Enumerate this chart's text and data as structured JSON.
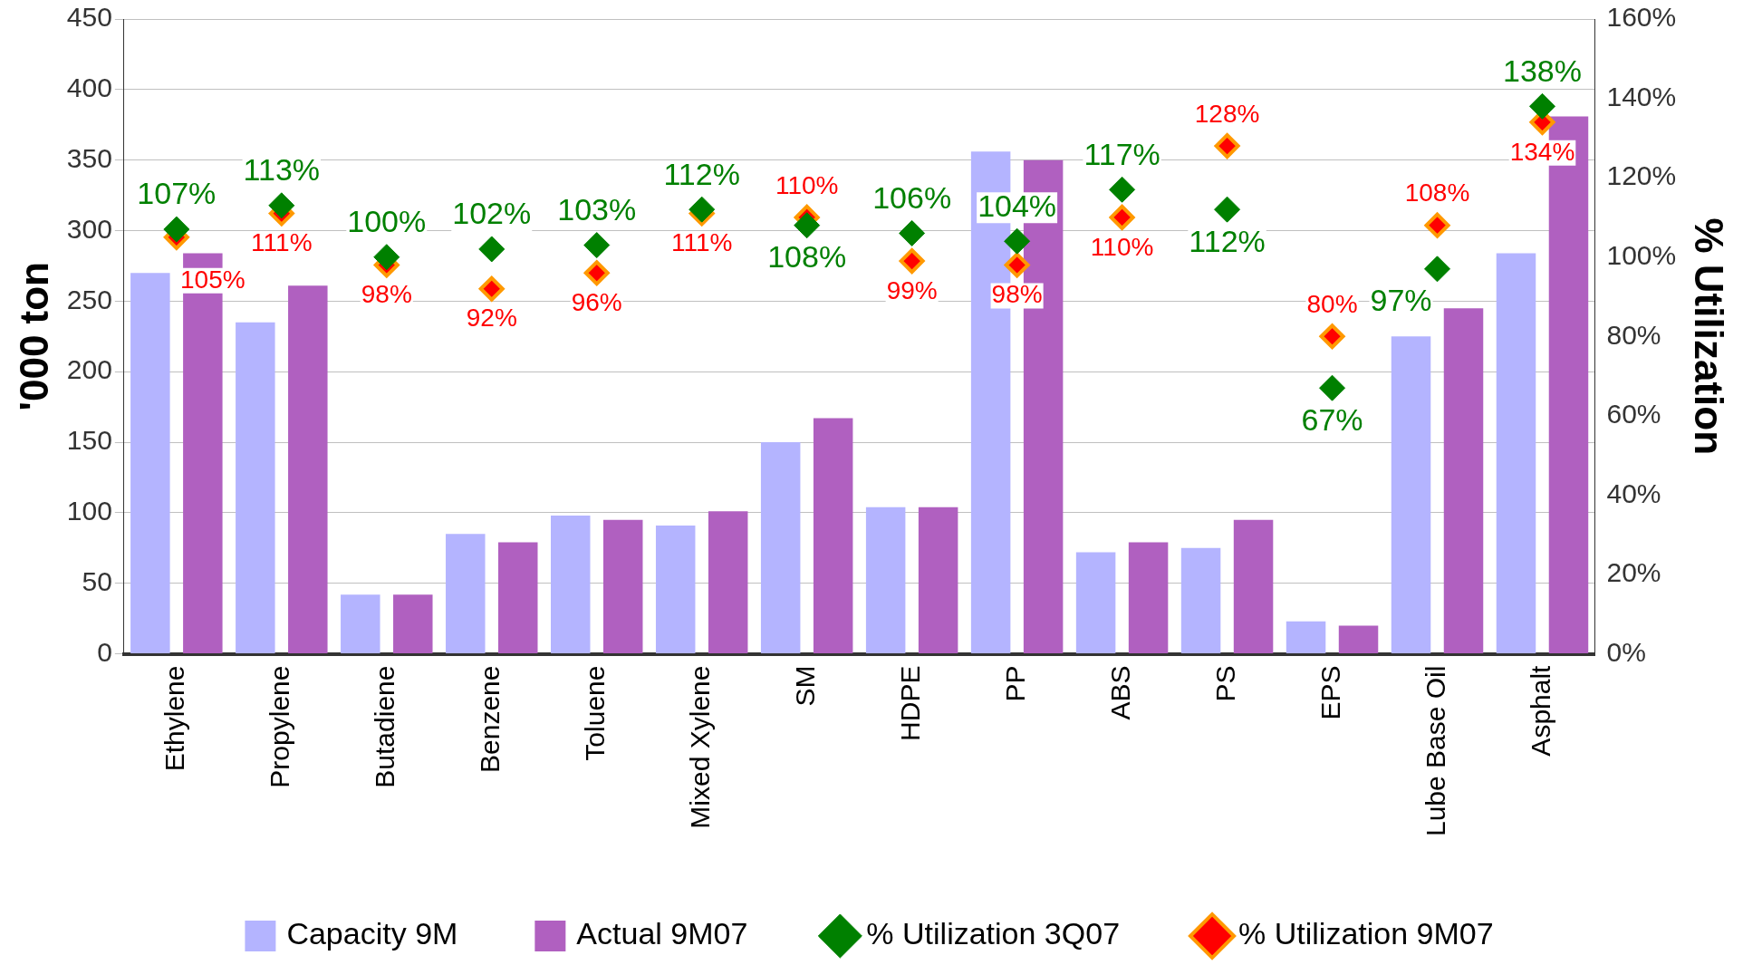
{
  "chart_data": {
    "type": "bar",
    "ylabel": "'000 ton",
    "y2label": "% Utilization",
    "categories": [
      "Ethylene",
      "Propylene",
      "Butadiene",
      "Benzene",
      "Toluene",
      "Mixed Xylene",
      "SM",
      "HDPE",
      "PP",
      "ABS",
      "PS",
      "EPS",
      "Lube Base Oil",
      "Asphalt"
    ],
    "series": [
      {
        "name": "Capacity 9M",
        "color": "#b4b4ff",
        "values": [
          270,
          235,
          42,
          85,
          98,
          91,
          150,
          104,
          356,
          72,
          75,
          23,
          225,
          284
        ]
      },
      {
        "name": "Actual 9M07",
        "color": "#b060c0",
        "values": [
          284,
          261,
          42,
          79,
          95,
          101,
          167,
          104,
          350,
          79,
          95,
          20,
          245,
          381
        ]
      },
      {
        "name": "% Utilization 3Q07",
        "type": "scatter",
        "axis": "y2",
        "marker": "diamond",
        "color": "#008000",
        "values": [
          107,
          113,
          100,
          102,
          103,
          112,
          108,
          106,
          104,
          117,
          112,
          67,
          97,
          138
        ],
        "value_labels": [
          "107%",
          "113%",
          "100%",
          "102%",
          "103%",
          "112%",
          "108%",
          "106%",
          "104%",
          "117%",
          "112%",
          "67%",
          "97%",
          "138%"
        ]
      },
      {
        "name": "% Utilization 9M07",
        "type": "scatter",
        "axis": "y2",
        "marker": "diamond",
        "color": "#ff0000",
        "values": [
          105,
          111,
          98,
          92,
          96,
          111,
          110,
          99,
          98,
          110,
          128,
          80,
          108,
          134
        ],
        "value_labels": [
          "105%",
          "111%",
          "98%",
          "92%",
          "96%",
          "111%",
          "110%",
          "99%",
          "98%",
          "110%",
          "128%",
          "80%",
          "108%",
          "134%"
        ]
      }
    ],
    "ylim": [
      0,
      450
    ],
    "yticks": [
      0,
      50,
      100,
      150,
      200,
      250,
      300,
      350,
      400,
      450
    ],
    "y2lim": [
      0,
      160
    ],
    "y2ticks": [
      {
        "value": 0,
        "label": "0%"
      },
      {
        "value": 20,
        "label": "20%"
      },
      {
        "value": 40,
        "label": "40%"
      },
      {
        "value": 60,
        "label": "60%"
      },
      {
        "value": 80,
        "label": "80%"
      },
      {
        "value": 100,
        "label": "100%"
      },
      {
        "value": 120,
        "label": "120%"
      },
      {
        "value": 140,
        "label": "140%"
      },
      {
        "value": 160,
        "label": "160%"
      }
    ],
    "grid": "y",
    "legend": "bottom"
  }
}
